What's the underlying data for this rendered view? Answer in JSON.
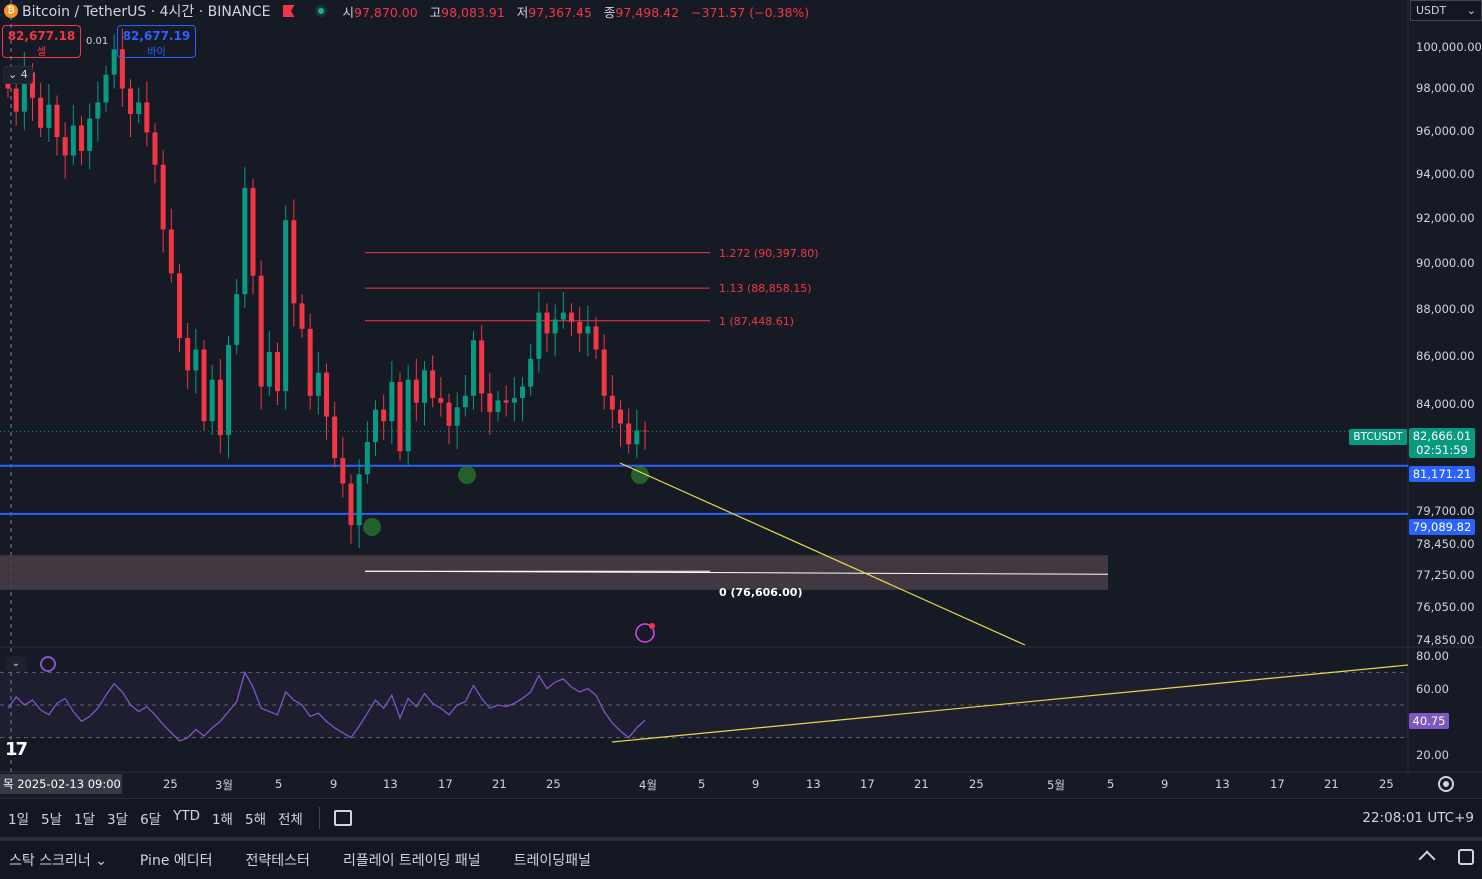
{
  "header": {
    "symbol_title": "Bitcoin / TetherUS · 4시간 · BINANCE",
    "coin_glyph": "₿",
    "ohlc": {
      "o_label": "시",
      "o": "97,870.00",
      "h_label": "고",
      "h": "98,083.91",
      "l_label": "저",
      "l": "97,367.45",
      "c_label": "종",
      "c": "97,498.42",
      "change": "−371.57 (−0.38%)"
    },
    "currency": "USDT"
  },
  "order": {
    "sell_price": "82,677.18",
    "sell_label": "셀",
    "spread": "0.01",
    "buy_price": "82,677.19",
    "buy_label": "바이"
  },
  "collapse_count": "4",
  "price_axis": {
    "ticks": [
      "100,000.00",
      "98,000.00",
      "96,000.00",
      "94,000.00",
      "92,000.00",
      "90,000.00",
      "88,000.00",
      "86,000.00",
      "84,000.00",
      "79,700.00",
      "78,450.00",
      "77,250.00",
      "76,050.00",
      "74,850.00"
    ],
    "symbol_tag": "BTCUSDT",
    "last_price": "82,666.01",
    "countdown": "02:51:59",
    "line1": "81,171.21",
    "line2": "79,089.82"
  },
  "fib": {
    "l1272": "1.272 (90,397.80)",
    "l113": "1.13 (88,858.15)",
    "l1": "1 (87,448.61)",
    "l0": "0 (76,606.00)"
  },
  "rsi": {
    "ticks": [
      "80.00",
      "60.00",
      "20.00"
    ],
    "value": "40.75"
  },
  "time_axis": {
    "crosshair": "목 2025-02-13   09:00",
    "ticks": [
      "25",
      "3월",
      "5",
      "9",
      "13",
      "17",
      "21",
      "25",
      "4월",
      "5",
      "9",
      "13",
      "17",
      "21",
      "25",
      "5월",
      "5",
      "9",
      "13",
      "17",
      "21",
      "25"
    ]
  },
  "ranges": [
    "1일",
    "5날",
    "1달",
    "3달",
    "6달",
    "YTD",
    "1해",
    "5해",
    "전체"
  ],
  "clock": "22:08:01 UTC+9",
  "tabs": [
    "스탁 스크리너",
    "Pine 에디터",
    "전략테스터",
    "리플레이 트레이딩 패널",
    "트레이딩패널"
  ],
  "tab_dropdown": "⌄",
  "colors": {
    "bg": "#161a25",
    "up": "#089981",
    "down": "#f23645",
    "blue_line": "#2962ff",
    "fib": "#f23645",
    "trend": "#e6d94a",
    "rsi": "#7e57c2"
  },
  "chart_data": {
    "type": "candlestick",
    "symbol": "BTCUSDT",
    "timeframe": "4시간",
    "ylim": [
      74850,
      100000
    ],
    "close_series": [
      97500,
      96500,
      98200,
      97100,
      95800,
      96800,
      95400,
      94600,
      95900,
      94800,
      96200,
      96900,
      98100,
      99200,
      97500,
      96400,
      96900,
      95600,
      94200,
      91400,
      89500,
      86700,
      85300,
      86200,
      83100,
      84900,
      82500,
      86400,
      88600,
      93200,
      89400,
      84600,
      86100,
      84400,
      91800,
      88200,
      87100,
      84200,
      85200,
      83300,
      81500,
      80400,
      78600,
      80800,
      82200,
      83600,
      83100,
      84800,
      81800,
      84900,
      83900,
      85300,
      84100,
      83900,
      82900,
      83700,
      84200,
      86600,
      84300,
      83500,
      84000,
      83900,
      84100,
      84600,
      85800,
      87800,
      86900,
      87500,
      87800,
      87400,
      86900,
      87200,
      86200,
      84200,
      83600,
      83000,
      82100,
      82700,
      82666
    ],
    "ma": [],
    "levels": {
      "horizontal_blue": [
        81171.21,
        79089.82
      ],
      "fib": [
        {
          "ratio": "1.272",
          "price": 90397.8
        },
        {
          "ratio": "1.13",
          "price": 88858.15
        },
        {
          "ratio": "1",
          "price": 87448.61
        },
        {
          "ratio": "0",
          "price": 76606.0
        }
      ],
      "zone": [
        75800,
        77300
      ]
    },
    "rsi": {
      "ylim": [
        10,
        85
      ],
      "bands": [
        70,
        50,
        30
      ],
      "values": [
        48,
        55,
        50,
        53,
        47,
        44,
        51,
        54,
        46,
        40,
        43,
        48,
        56,
        63,
        58,
        50,
        46,
        49,
        44,
        38,
        33,
        28,
        30,
        35,
        31,
        36,
        40,
        46,
        52,
        70,
        61,
        48,
        46,
        44,
        58,
        53,
        50,
        43,
        45,
        40,
        36,
        33,
        30,
        37,
        45,
        53,
        48,
        56,
        42,
        54,
        49,
        57,
        51,
        48,
        44,
        50,
        52,
        62,
        54,
        48,
        50,
        49,
        51,
        54,
        58,
        68,
        60,
        64,
        66,
        61,
        58,
        60,
        56,
        46,
        39,
        34,
        30,
        36,
        40.75
      ]
    }
  }
}
